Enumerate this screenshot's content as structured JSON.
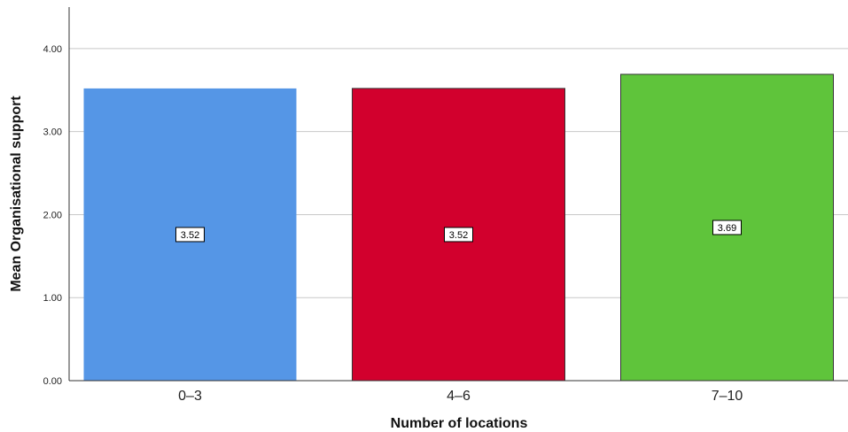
{
  "chart_data": {
    "type": "bar",
    "categories": [
      "0-3",
      "4-6",
      "7-10"
    ],
    "values": [
      3.52,
      3.52,
      3.69
    ],
    "data_labels": [
      "3.52",
      "3.52",
      "3.69"
    ],
    "bar_colors": [
      "#5596e6",
      "#d2002d",
      "#5fc43b"
    ],
    "title": "",
    "xlabel": "Number of locations",
    "ylabel": "Mean Organisational support",
    "ylim": [
      0,
      4.5
    ],
    "yticks": [
      0,
      1,
      2,
      3,
      4
    ],
    "ytick_labels": [
      "0.00",
      "1.00",
      "2.00",
      "3.00",
      "4.00"
    ],
    "grid": true
  }
}
